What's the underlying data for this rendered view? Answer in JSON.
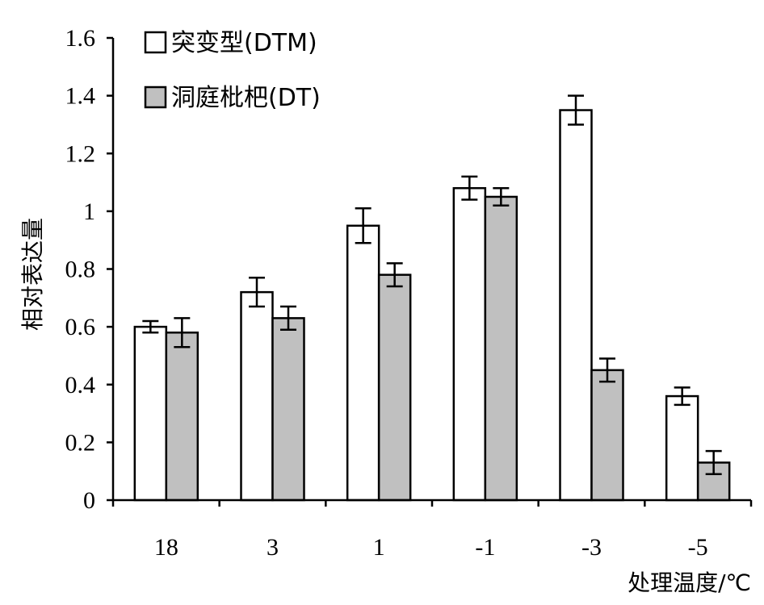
{
  "chart_data": {
    "type": "bar",
    "title": "",
    "xlabel": "处理温度/℃",
    "ylabel": "相对表达量",
    "categories": [
      "18",
      "3",
      "1",
      "-1",
      "-3",
      "-5"
    ],
    "ylim": [
      0,
      1.6
    ],
    "yticks": [
      "0",
      "0.2",
      "0.4",
      "0.6",
      "0.8",
      "1",
      "1.2",
      "1.4",
      "1.6"
    ],
    "legend_position": "top-left",
    "grid": false,
    "series": [
      {
        "name": "突变型(DTM)",
        "color": "#ffffff",
        "values": [
          0.6,
          0.72,
          0.95,
          1.08,
          1.35,
          0.36
        ],
        "errors": [
          0.02,
          0.05,
          0.06,
          0.04,
          0.05,
          0.03
        ]
      },
      {
        "name": "洞庭枇杷(DT)",
        "color": "#c0c0c0",
        "values": [
          0.58,
          0.63,
          0.78,
          1.05,
          0.45,
          0.13
        ],
        "errors": [
          0.05,
          0.04,
          0.04,
          0.03,
          0.04,
          0.04
        ]
      }
    ]
  }
}
